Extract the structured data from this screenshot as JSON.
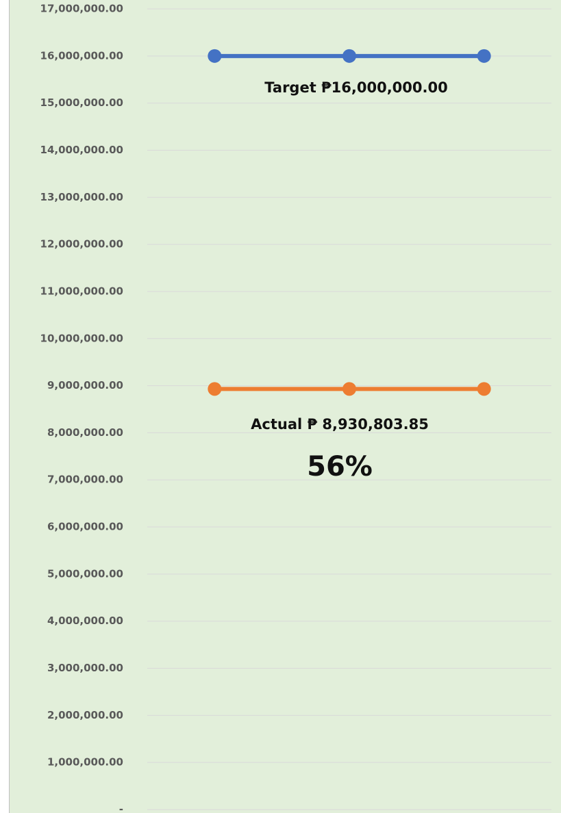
{
  "chart_data": {
    "type": "line",
    "categories": [
      null,
      null,
      null
    ],
    "series": [
      {
        "color": "#4472c4",
        "values": [
          16000000,
          16000000,
          16000000
        ]
      },
      {
        "color": "#ed7d31",
        "values": [
          8930803.85,
          8930803.85,
          8930803.85
        ]
      }
    ],
    "ylim": [
      0,
      17000000
    ],
    "yticks": [
      {
        "value": 0,
        "label": "-"
      },
      {
        "value": 1000000,
        "label": "1,000,000.00"
      },
      {
        "value": 2000000,
        "label": "2,000,000.00"
      },
      {
        "value": 3000000,
        "label": "3,000,000.00"
      },
      {
        "value": 4000000,
        "label": "4,000,000.00"
      },
      {
        "value": 5000000,
        "label": "5,000,000.00"
      },
      {
        "value": 6000000,
        "label": "6,000,000.00"
      },
      {
        "value": 7000000,
        "label": "7,000,000.00"
      },
      {
        "value": 8000000,
        "label": "8,000,000.00"
      },
      {
        "value": 9000000,
        "label": "9,000,000.00"
      },
      {
        "value": 10000000,
        "label": "10,000,000.00"
      },
      {
        "value": 11000000,
        "label": "11,000,000.00"
      },
      {
        "value": 12000000,
        "label": "12,000,000.00"
      },
      {
        "value": 13000000,
        "label": "13,000,000.00"
      },
      {
        "value": 14000000,
        "label": "14,000,000.00"
      },
      {
        "value": 15000000,
        "label": "15,000,000.00"
      },
      {
        "value": 16000000,
        "label": "16,000,000.00"
      },
      {
        "value": 17000000,
        "label": "17,000,000.00"
      }
    ],
    "grid": true,
    "annotations": [
      "Target ₱16,000,000.00",
      "Actual ₱ 8,930,803.85",
      "56%"
    ]
  }
}
